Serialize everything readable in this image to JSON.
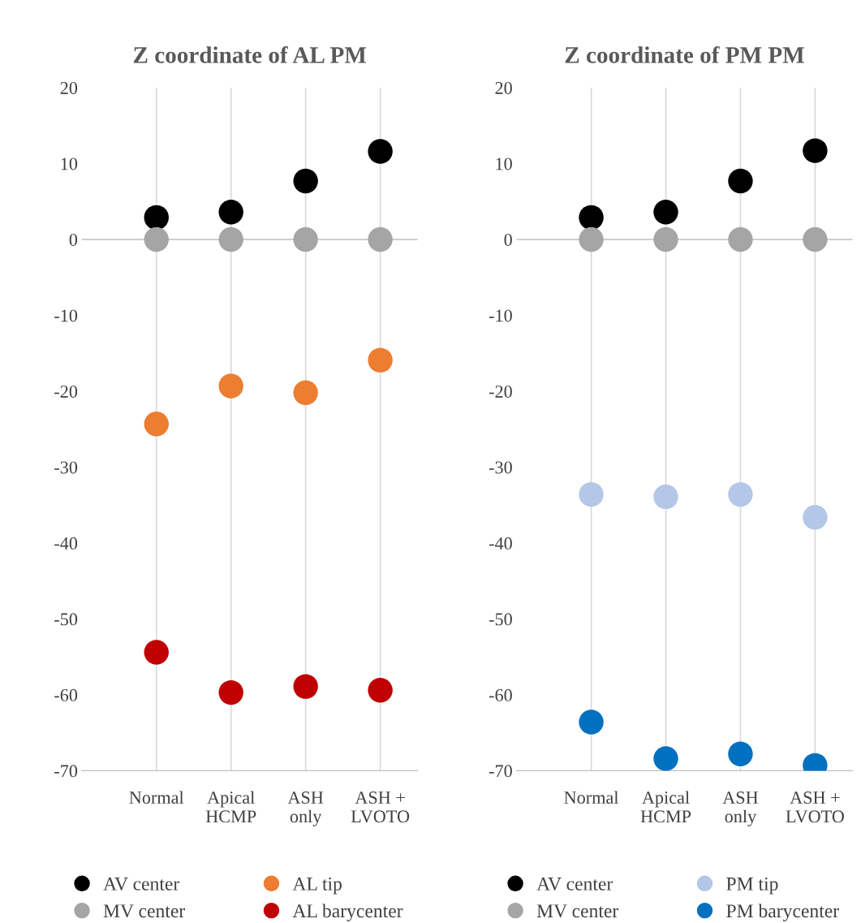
{
  "chart_data": [
    {
      "type": "scatter",
      "title": "Z coordinate of AL PM",
      "categories": [
        "Normal",
        "Apical\nHCMP",
        "ASH\nonly",
        "ASH +\nLVOTO"
      ],
      "ylim": [
        -70,
        20
      ],
      "yticks": [
        -70,
        -60,
        -50,
        -40,
        -30,
        -20,
        -10,
        0,
        10,
        20
      ],
      "grid": "x",
      "legend": "bottom",
      "marker": "circle",
      "series": [
        {
          "name": "AV center",
          "color": "#000000",
          "values": [
            2.9,
            3.6,
            7.7,
            11.6
          ]
        },
        {
          "name": "MV center",
          "color": "#a5a5a5",
          "values": [
            0,
            0,
            0,
            0
          ]
        },
        {
          "name": "AL tip",
          "color": "#ed7d31",
          "values": [
            -24.3,
            -19.3,
            -20.2,
            -15.9
          ]
        },
        {
          "name": "AL barycenter",
          "color": "#c00000",
          "values": [
            -54.4,
            -59.7,
            -58.9,
            -59.4
          ]
        }
      ]
    },
    {
      "type": "scatter",
      "title": "Z coordinate of PM PM",
      "categories": [
        "Normal",
        "Apical\nHCMP",
        "ASH\nonly",
        "ASH +\nLVOTO"
      ],
      "ylim": [
        -70,
        20
      ],
      "yticks": [
        -70,
        -60,
        -50,
        -40,
        -30,
        -20,
        -10,
        0,
        10,
        20
      ],
      "grid": "x",
      "legend": "bottom",
      "marker": "circle",
      "series": [
        {
          "name": "AV center",
          "color": "#000000",
          "values": [
            2.9,
            3.6,
            7.7,
            11.7
          ]
        },
        {
          "name": "MV center",
          "color": "#a5a5a5",
          "values": [
            0,
            0,
            0,
            0
          ]
        },
        {
          "name": "PM tip",
          "color": "#b4c7e7",
          "values": [
            -33.6,
            -33.9,
            -33.6,
            -36.6
          ]
        },
        {
          "name": "PM barycenter",
          "color": "#0070c0",
          "values": [
            -63.6,
            -68.4,
            -67.8,
            -69.3
          ]
        }
      ]
    }
  ]
}
